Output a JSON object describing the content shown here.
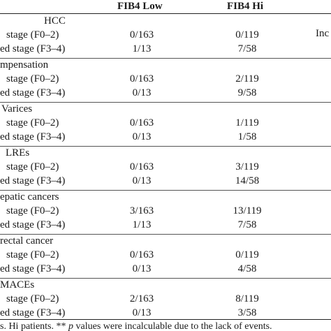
{
  "table": {
    "headers": {
      "col_low": "FIB4 Low",
      "col_hi": "FIB4 Hi",
      "col_right_fragment": "Inc"
    },
    "sections": [
      {
        "title": "HCC",
        "rows": [
          {
            "label": "stage (F0–2)",
            "low": "0/163",
            "hi": "0/119"
          },
          {
            "label": "ed stage (F3–4)",
            "low": "1/13",
            "hi": "7/58"
          }
        ]
      },
      {
        "title": "mpensation",
        "rows": [
          {
            "label": "stage (F0–2)",
            "low": "0/163",
            "hi": "2/119"
          },
          {
            "label": "ed stage (F3–4)",
            "low": "0/13",
            "hi": "9/58"
          }
        ]
      },
      {
        "title": "Varices",
        "rows": [
          {
            "label": "stage (F0–2)",
            "low": "0/163",
            "hi": "1/119"
          },
          {
            "label": "ed stage (F3–4)",
            "low": "0/13",
            "hi": "1/58"
          }
        ]
      },
      {
        "title": "LREs",
        "rows": [
          {
            "label": "stage (F0–2)",
            "low": "0/163",
            "hi": "3/119"
          },
          {
            "label": "ed stage (F3–4)",
            "low": "0/13",
            "hi": "14/58"
          }
        ]
      },
      {
        "title": "epatic cancers",
        "rows": [
          {
            "label": "stage (F0–2)",
            "low": "3/163",
            "hi": "13/119"
          },
          {
            "label": "ed stage (F3–4)",
            "low": "1/13",
            "hi": "7/58"
          }
        ]
      },
      {
        "title": "rectal cancer",
        "rows": [
          {
            "label": "stage (F0–2)",
            "low": "0/163",
            "hi": "0/119"
          },
          {
            "label": "ed stage (F3–4)",
            "low": "0/13",
            "hi": "4/58"
          }
        ]
      },
      {
        "title": "MACEs",
        "rows": [
          {
            "label": "stage (F0–2)",
            "low": "2/163",
            "hi": "8/119"
          },
          {
            "label": "ed stage (F3–4)",
            "low": "0/13",
            "hi": "3/58"
          }
        ]
      }
    ],
    "footnote": {
      "lead": "s. Hi patients. ** ",
      "p": "p",
      "rest": " values were incalculable due to the lack of events."
    }
  }
}
